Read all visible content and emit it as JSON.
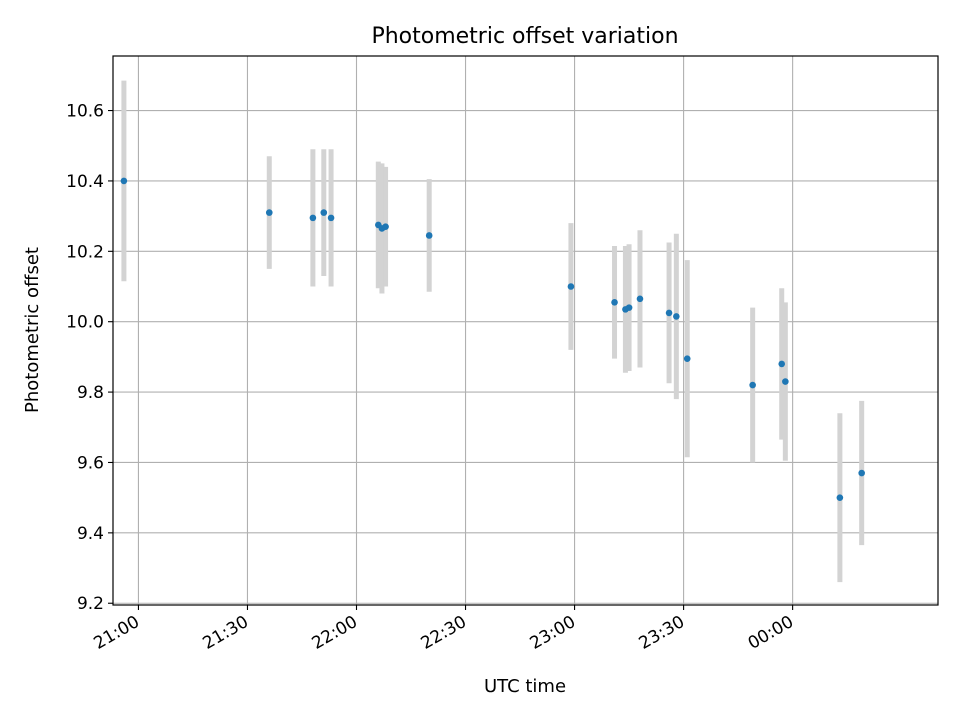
{
  "chart_data": {
    "type": "scatter",
    "title": "Photometric offset variation",
    "xlabel": "UTC time",
    "ylabel": "Photometric offset",
    "grid": true,
    "xlim": [
      "20:53",
      "00:40"
    ],
    "ylim": [
      9.195,
      10.755
    ],
    "x_ticks": [
      "21:00",
      "21:30",
      "22:00",
      "22:30",
      "23:00",
      "23:30",
      "00:00"
    ],
    "y_ticks": [
      9.2,
      9.4,
      9.6,
      9.8,
      10.0,
      10.2,
      10.4,
      10.6
    ],
    "y_tick_labels": [
      "9.2",
      "9.4",
      "9.6",
      "9.8",
      "10.0",
      "10.2",
      "10.4",
      "10.6"
    ],
    "points": [
      {
        "time": "20:56",
        "value": 10.4,
        "err": 0.285
      },
      {
        "time": "21:36",
        "value": 10.31,
        "err": 0.16
      },
      {
        "time": "21:48",
        "value": 10.295,
        "err": 0.195
      },
      {
        "time": "21:51",
        "value": 10.31,
        "err": 0.18
      },
      {
        "time": "21:53",
        "value": 10.295,
        "err": 0.195
      },
      {
        "time": "22:06",
        "value": 10.275,
        "err": 0.18
      },
      {
        "time": "22:07",
        "value": 10.265,
        "err": 0.185
      },
      {
        "time": "22:08",
        "value": 10.27,
        "err": 0.17
      },
      {
        "time": "22:20",
        "value": 10.245,
        "err": 0.16
      },
      {
        "time": "22:59",
        "value": 10.1,
        "err": 0.18
      },
      {
        "time": "23:11",
        "value": 10.055,
        "err": 0.16
      },
      {
        "time": "23:14",
        "value": 10.035,
        "err": 0.18
      },
      {
        "time": "23:15",
        "value": 10.04,
        "err": 0.18
      },
      {
        "time": "23:18",
        "value": 10.065,
        "err": 0.195
      },
      {
        "time": "23:26",
        "value": 10.025,
        "err": 0.2
      },
      {
        "time": "23:28",
        "value": 10.015,
        "err": 0.235
      },
      {
        "time": "23:31",
        "value": 9.895,
        "err": 0.28
      },
      {
        "time": "23:49",
        "value": 9.82,
        "err": 0.22
      },
      {
        "time": "23:57",
        "value": 9.88,
        "err": 0.215
      },
      {
        "time": "23:58",
        "value": 9.83,
        "err": 0.225
      },
      {
        "time": "00:13",
        "value": 9.5,
        "err": 0.24
      },
      {
        "time": "00:19",
        "value": 9.57,
        "err": 0.205
      }
    ],
    "marker_color": "#1f77b4",
    "errorbar_color": "#d3d3d3"
  }
}
